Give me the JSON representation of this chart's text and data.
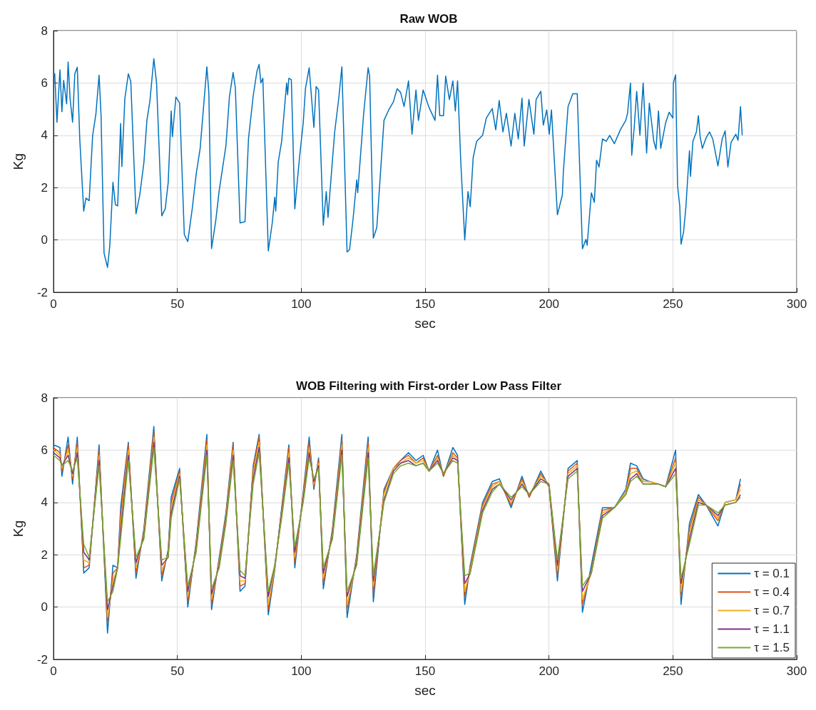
{
  "chart_data": [
    {
      "type": "line",
      "title": "Raw WOB",
      "xlabel": "sec",
      "ylabel": "Kg",
      "xlim": [
        0,
        300
      ],
      "xticks": [
        0,
        50,
        100,
        150,
        200,
        250,
        300
      ],
      "ylim": [
        -2,
        8
      ],
      "yticks": [
        -2,
        0,
        2,
        4,
        6,
        8
      ],
      "grid": true,
      "legend": false,
      "series": [
        {
          "color": "#0072bd",
          "x": [
            0,
            0.5,
            1.4,
            2.6,
            3.4,
            4.1,
            5.3,
            5.9,
            6.7,
            7.7,
            8.6,
            9.6,
            10.6,
            12.2,
            13.1,
            14.4,
            15.8,
            17.1,
            18.4,
            19.2,
            20.4,
            21.8,
            22.7,
            24,
            25,
            25.9,
            27.1,
            27.6,
            28.8,
            30.2,
            31.2,
            32.1,
            33.3,
            34.8,
            36.5,
            37.7,
            38.9,
            40.5,
            41.6,
            43.7,
            45.1,
            46.3,
            47.5,
            48,
            49.4,
            50.9,
            52.8,
            54.2,
            56,
            57.6,
            59.2,
            61.9,
            62.7,
            63.8,
            65.5,
            66.9,
            69.6,
            71,
            72.5,
            73.4,
            75.3,
            77.3,
            78.7,
            80.6,
            82.1,
            83,
            83.7,
            84.5,
            86.7,
            88.3,
            89.3,
            89.7,
            90.7,
            92.1,
            94.1,
            94.5,
            95,
            96,
            97.4,
            99.3,
            100.8,
            101.7,
            103.2,
            105.1,
            106,
            107,
            108.9,
            110.1,
            110.8,
            112.6,
            113.5,
            115.2,
            116.4,
            118.5,
            119.5,
            120.9,
            122.4,
            122.8,
            125.2,
            127,
            127.6,
            129.1,
            130.5,
            133.4,
            135.3,
            137.2,
            138.7,
            140.1,
            141.5,
            143.3,
            144.7,
            146.3,
            147.3,
            149.2,
            151.6,
            154,
            155,
            155.9,
            157.4,
            158.3,
            159.8,
            161.2,
            162.2,
            163.1,
            164.4,
            166,
            167.3,
            168.2,
            169.4,
            170.8,
            173.2,
            174.7,
            177.1,
            178.5,
            179.9,
            181.4,
            182.8,
            184.7,
            186.2,
            187.6,
            189.1,
            190,
            191.9,
            193.9,
            194.8,
            196.7,
            197.7,
            199.1,
            200.1,
            201,
            203.4,
            205.4,
            205.8,
            207.7,
            209.6,
            211.4,
            213.5,
            214.9,
            215.4,
            217.1,
            218.3,
            219.2,
            220.2,
            221.6,
            223.1,
            224.5,
            226.4,
            228.8,
            231,
            231.7,
            232.9,
            233.4,
            234.4,
            235.4,
            236.7,
            238,
            239.4,
            240.5,
            242.3,
            243.2,
            244.2,
            245.1,
            247.1,
            248.5,
            250,
            250.2,
            251.1,
            251.9,
            252.8,
            253.3,
            254.3,
            255.2,
            256.7,
            257.1,
            258.1,
            259.5,
            260.3,
            261,
            261.9,
            263.4,
            264.8,
            266.1,
            268.2,
            269.9,
            271.1,
            272.2,
            273.5,
            275.4,
            276.3,
            277.3,
            278
          ],
          "values": [
            6.3,
            6.35,
            4.5,
            6.5,
            4.9,
            6.1,
            5.2,
            6.8,
            5.4,
            4.5,
            6.35,
            6.6,
            3.86,
            1.1,
            1.6,
            1.5,
            4.0,
            4.8,
            6.3,
            4.75,
            -0.5,
            -1.05,
            -0.25,
            2.2,
            1.35,
            1.3,
            4.45,
            2.8,
            5.4,
            6.35,
            6.05,
            3.86,
            1.0,
            1.7,
            2.97,
            4.57,
            5.3,
            6.93,
            6.0,
            0.92,
            1.19,
            2.2,
            4.93,
            3.95,
            5.46,
            5.24,
            0.2,
            -0.06,
            1.19,
            2.52,
            3.5,
            6.62,
            5.64,
            -0.33,
            0.74,
            1.9,
            3.6,
            5.46,
            6.4,
            5.82,
            0.65,
            0.7,
            3.86,
            5.5,
            6.44,
            6.71,
            6.0,
            6.18,
            -0.42,
            0.65,
            1.63,
            1.1,
            2.97,
            3.77,
            6.0,
            5.55,
            6.18,
            6.13,
            1.19,
            3.15,
            4.48,
            5.78,
            6.58,
            4.3,
            5.86,
            5.73,
            0.56,
            1.85,
            0.86,
            3.06,
            4.13,
            5.46,
            6.62,
            -0.46,
            -0.37,
            0.78,
            2.3,
            1.81,
            4.84,
            6.58,
            6.26,
            0.07,
            0.47,
            4.57,
            4.97,
            5.28,
            5.78,
            5.64,
            5.1,
            6.08,
            4.04,
            5.73,
            4.57,
            5.73,
            5.06,
            4.57,
            6.3,
            4.75,
            4.75,
            6.26,
            5.37,
            6.08,
            4.93,
            6.08,
            2.97,
            0.0,
            1.85,
            1.27,
            3.15,
            3.77,
            4.0,
            4.66,
            5.02,
            4.21,
            5.33,
            4.13,
            4.84,
            3.59,
            4.84,
            3.86,
            5.42,
            3.59,
            5.37,
            4.04,
            5.37,
            5.68,
            4.39,
            4.97,
            4.04,
            4.97,
            0.96,
            1.72,
            2.6,
            5.1,
            5.59,
            5.59,
            -0.34,
            0.02,
            -0.2,
            1.8,
            1.44,
            3.05,
            2.79,
            3.86,
            3.77,
            4.0,
            3.68,
            4.21,
            4.57,
            4.84,
            6.0,
            3.24,
            4.3,
            5.68,
            4.0,
            6.0,
            3.32,
            5.23,
            3.77,
            3.46,
            4.93,
            3.5,
            4.48,
            4.88,
            4.66,
            6.0,
            6.31,
            2.07,
            1.27,
            -0.16,
            0.29,
            1.19,
            3.41,
            2.43,
            3.77,
            4.13,
            4.75,
            3.95,
            3.5,
            3.9,
            4.13,
            3.86,
            2.83,
            3.86,
            4.17,
            2.79,
            3.73,
            4.04,
            3.81,
            5.1,
            4.0
          ]
        }
      ]
    },
    {
      "type": "line",
      "title": "WOB Filtering with First-order Low Pass Filter",
      "xlabel": "sec",
      "ylabel": "Kg",
      "xlim": [
        0,
        300
      ],
      "xticks": [
        0,
        50,
        100,
        150,
        200,
        250,
        300
      ],
      "ylim": [
        -2,
        8
      ],
      "yticks": [
        -2,
        0,
        2,
        4,
        6,
        8
      ],
      "grid": true,
      "legend": "bottom right",
      "x": [
        0,
        2.6,
        3.4,
        5.9,
        7.7,
        9.6,
        12.2,
        14.4,
        18.4,
        21.8,
        24,
        25.9,
        27.1,
        30.2,
        33.3,
        36.5,
        40.5,
        43.7,
        46.3,
        47.5,
        50.9,
        54.2,
        57.6,
        61.9,
        63.8,
        66.9,
        69.6,
        72.5,
        75.3,
        77.3,
        80.6,
        83,
        86.7,
        89.3,
        92.1,
        95,
        97.4,
        100.8,
        103.2,
        105.1,
        107,
        108.9,
        112.6,
        116.4,
        118.5,
        122.4,
        127,
        129.1,
        133.4,
        137.2,
        140.1,
        143.3,
        146.3,
        149.2,
        151.6,
        155,
        157.4,
        161.2,
        163.1,
        166,
        168.2,
        173.2,
        177.1,
        180,
        184.7,
        189.1,
        192,
        196.7,
        200,
        203.4,
        207.7,
        211.4,
        213.5,
        217.1,
        221.6,
        226.4,
        231,
        232.9,
        235.4,
        238,
        240.5,
        244.2,
        247.1,
        251.1,
        253.3,
        256.7,
        260.3,
        263.4,
        268.2,
        271.1,
        275.4,
        277.3
      ],
      "series": [
        {
          "name": "τ = 0.1",
          "color": "#0072bd",
          "values": [
            6.2,
            6.1,
            5.0,
            6.5,
            4.7,
            6.5,
            1.3,
            1.5,
            6.2,
            -1.0,
            1.6,
            1.5,
            3.8,
            6.3,
            1.1,
            3.0,
            6.9,
            1.0,
            2.2,
            4.2,
            5.3,
            0.0,
            2.5,
            6.6,
            -0.1,
            1.9,
            3.6,
            6.3,
            0.6,
            0.8,
            5.4,
            6.6,
            -0.3,
            1.4,
            3.8,
            6.2,
            1.5,
            4.4,
            6.5,
            4.5,
            5.7,
            0.7,
            3.0,
            6.6,
            -0.4,
            2.0,
            6.5,
            0.2,
            4.5,
            5.3,
            5.6,
            5.9,
            5.6,
            5.8,
            5.2,
            6.0,
            5.0,
            6.1,
            5.8,
            0.1,
            1.6,
            4.0,
            4.8,
            4.9,
            3.8,
            5.0,
            4.2,
            5.2,
            4.6,
            1.0,
            5.3,
            5.6,
            -0.2,
            1.6,
            3.8,
            3.8,
            4.5,
            5.5,
            5.4,
            4.9,
            4.8,
            4.7,
            4.6,
            6.0,
            0.1,
            3.2,
            4.3,
            3.9,
            3.1,
            4.0,
            4.1,
            4.9
          ]
        },
        {
          "name": "τ = 0.4",
          "color": "#d95319",
          "values": [
            6.1,
            5.9,
            5.2,
            6.2,
            4.9,
            6.3,
            1.5,
            1.6,
            6.0,
            -0.6,
            1.3,
            1.5,
            3.5,
            6.2,
            1.3,
            2.9,
            6.7,
            1.2,
            2.1,
            4.0,
            5.2,
            0.2,
            2.4,
            6.4,
            0.1,
            1.8,
            3.5,
            6.2,
            0.8,
            0.9,
            5.3,
            6.5,
            -0.1,
            1.5,
            3.7,
            6.1,
            1.7,
            4.3,
            6.3,
            4.6,
            5.6,
            0.9,
            2.9,
            6.4,
            -0.1,
            1.9,
            6.3,
            0.5,
            4.4,
            5.3,
            5.6,
            5.8,
            5.5,
            5.7,
            5.2,
            5.8,
            5.0,
            5.9,
            5.7,
            0.4,
            1.5,
            3.9,
            4.7,
            4.8,
            3.9,
            4.9,
            4.2,
            5.1,
            4.6,
            1.2,
            5.2,
            5.5,
            0.1,
            1.4,
            3.7,
            3.8,
            4.4,
            5.3,
            5.3,
            4.8,
            4.8,
            4.7,
            4.6,
            5.7,
            0.4,
            3.0,
            4.2,
            3.9,
            3.3,
            4.0,
            4.1,
            4.7
          ]
        },
        {
          "name": "τ = 0.7",
          "color": "#edb120",
          "values": [
            6.0,
            5.8,
            5.3,
            6.0,
            5.0,
            6.1,
            1.8,
            1.7,
            5.8,
            -0.4,
            1.0,
            1.5,
            3.2,
            6.0,
            1.5,
            2.8,
            6.5,
            1.4,
            2.0,
            3.8,
            5.1,
            0.4,
            2.3,
            6.2,
            0.3,
            1.7,
            3.4,
            6.0,
            1.0,
            1.0,
            5.1,
            6.3,
            0.1,
            1.5,
            3.6,
            5.9,
            1.9,
            4.2,
            6.1,
            4.7,
            5.5,
            1.1,
            2.8,
            6.2,
            0.1,
            1.8,
            6.1,
            0.8,
            4.3,
            5.3,
            5.5,
            5.7,
            5.5,
            5.6,
            5.2,
            5.7,
            5.1,
            5.8,
            5.6,
            0.6,
            1.4,
            3.8,
            4.6,
            4.8,
            4.0,
            4.8,
            4.3,
            5.0,
            4.7,
            1.4,
            5.1,
            5.4,
            0.3,
            1.3,
            3.6,
            3.8,
            4.4,
            5.1,
            5.2,
            4.8,
            4.8,
            4.7,
            4.6,
            5.5,
            0.6,
            2.8,
            4.1,
            3.9,
            3.4,
            4.0,
            4.1,
            4.5
          ]
        },
        {
          "name": "τ = 1.1",
          "color": "#7e2f8e",
          "values": [
            5.9,
            5.7,
            5.4,
            5.8,
            5.1,
            5.9,
            2.1,
            1.8,
            5.6,
            -0.1,
            0.8,
            1.5,
            2.9,
            5.8,
            1.7,
            2.7,
            6.3,
            1.6,
            1.9,
            3.6,
            5.0,
            0.6,
            2.2,
            6.0,
            0.5,
            1.6,
            3.3,
            5.8,
            1.2,
            1.1,
            4.9,
            6.1,
            0.4,
            1.6,
            3.5,
            5.7,
            2.1,
            4.1,
            5.9,
            4.8,
            5.4,
            1.3,
            2.7,
            6.0,
            0.4,
            1.7,
            5.9,
            1.0,
            4.1,
            5.2,
            5.5,
            5.6,
            5.4,
            5.5,
            5.2,
            5.6,
            5.1,
            5.7,
            5.6,
            0.9,
            1.3,
            3.7,
            4.5,
            4.7,
            4.1,
            4.7,
            4.3,
            4.9,
            4.7,
            1.6,
            5.0,
            5.3,
            0.6,
            1.3,
            3.5,
            3.8,
            4.3,
            4.9,
            5.1,
            4.7,
            4.7,
            4.7,
            4.6,
            5.3,
            0.9,
            2.6,
            4.0,
            3.9,
            3.5,
            3.9,
            4.0,
            4.3
          ]
        },
        {
          "name": "τ = 1.5",
          "color": "#77ac30",
          "values": [
            5.8,
            5.6,
            5.4,
            5.6,
            5.2,
            5.7,
            2.4,
            1.9,
            5.4,
            0.2,
            0.6,
            1.5,
            2.6,
            5.6,
            1.9,
            2.6,
            6.1,
            1.8,
            1.9,
            3.4,
            4.9,
            0.8,
            2.1,
            5.8,
            0.7,
            1.5,
            3.2,
            5.6,
            1.4,
            1.2,
            4.7,
            5.9,
            0.6,
            1.6,
            3.4,
            5.5,
            2.3,
            4.0,
            5.7,
            4.9,
            5.3,
            1.5,
            2.6,
            5.8,
            0.6,
            1.6,
            5.7,
            1.2,
            4.0,
            5.1,
            5.4,
            5.5,
            5.4,
            5.5,
            5.2,
            5.5,
            5.1,
            5.6,
            5.5,
            1.2,
            1.3,
            3.6,
            4.4,
            4.7,
            4.2,
            4.6,
            4.3,
            4.8,
            4.7,
            1.8,
            4.9,
            5.2,
            0.8,
            1.3,
            3.4,
            3.8,
            4.3,
            4.8,
            5.0,
            4.7,
            4.7,
            4.7,
            4.6,
            5.1,
            1.1,
            2.4,
            3.9,
            3.9,
            3.6,
            3.9,
            4.0,
            4.2
          ]
        }
      ]
    }
  ]
}
